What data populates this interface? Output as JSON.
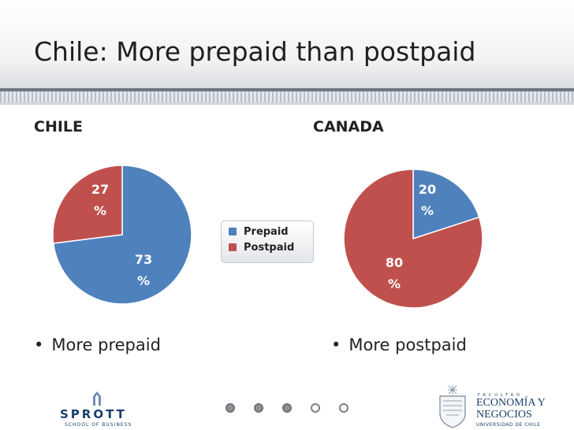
{
  "slide": {
    "title": "Chile: More prepaid than postpaid"
  },
  "sections": {
    "chile": "CHILE",
    "canada": "CANADA"
  },
  "legend": {
    "prepaid": "Prepaid",
    "postpaid": "Postpaid"
  },
  "bullets": {
    "chile": "More prepaid",
    "canada": "More postpaid",
    "marker": "•"
  },
  "colors": {
    "prepaid": "#4f81bd",
    "postpaid": "#c0504d",
    "label_on_prepaid": "#ffffff",
    "label_on_postpaid": "#ffffff"
  },
  "chart_data": [
    {
      "type": "pie",
      "title": "CHILE",
      "categories": [
        "Prepaid",
        "Postpaid"
      ],
      "values": [
        73,
        27
      ],
      "labels": [
        {
          "line1": "73",
          "line2": "%"
        },
        {
          "line1": "27",
          "line2": "%"
        }
      ],
      "legend": "center"
    },
    {
      "type": "pie",
      "title": "CANADA",
      "categories": [
        "Prepaid",
        "Postpaid"
      ],
      "values": [
        20,
        80
      ],
      "labels": [
        {
          "line1": "20",
          "line2": "%"
        },
        {
          "line1": "80",
          "line2": "%"
        }
      ],
      "legend": "center"
    }
  ],
  "logos": {
    "sprott": {
      "name": "SPROTT",
      "subtitle": "SCHOOL OF BUSINESS"
    },
    "faculty": {
      "small": "FACULTAD",
      "line1": "ECONOMÍA Y",
      "line2": "NEGOCIOS",
      "university": "UNIVERSIDAD DE CHILE"
    }
  },
  "nav_dots": {
    "total": 5,
    "filled": 3
  }
}
